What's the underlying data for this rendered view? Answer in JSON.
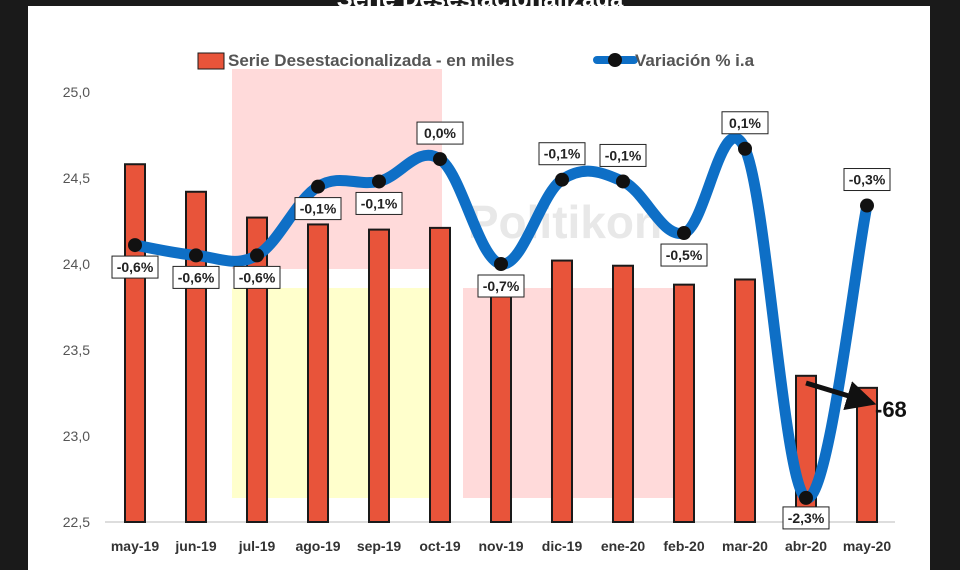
{
  "chart_data": {
    "type": "bar+line",
    "title": "Serie Desestacionalizada",
    "categories": [
      "may-19",
      "jun-19",
      "jul-19",
      "ago-19",
      "sep-19",
      "oct-19",
      "nov-19",
      "dic-19",
      "ene-20",
      "feb-20",
      "mar-20",
      "abr-20",
      "may-20"
    ],
    "series": [
      {
        "name": "Serie Desestacionalizada - en miles",
        "kind": "bar",
        "axis": "left",
        "values": [
          24.58,
          24.42,
          24.27,
          24.23,
          24.2,
          24.21,
          23.86,
          24.02,
          23.99,
          23.88,
          23.91,
          23.35,
          23.28
        ]
      },
      {
        "name": "Variación % i.a",
        "kind": "line",
        "values": [
          -0.6,
          -0.6,
          -0.6,
          -0.1,
          -0.1,
          0.0,
          -0.7,
          -0.1,
          -0.1,
          -0.5,
          0.1,
          -2.3,
          -0.3
        ],
        "labels": [
          "-0,6%",
          "-0,6%",
          "-0,6%",
          "-0,1%",
          "-0,1%",
          "0,0%",
          "-0,7%",
          "-0,1%",
          "-0,1%",
          "-0,5%",
          "0,1%",
          "-2,3%",
          "-0,3%"
        ],
        "plot_level": [
          24.11,
          24.05,
          24.05,
          24.45,
          24.48,
          24.61,
          24.0,
          24.49,
          24.48,
          24.18,
          24.67,
          22.64,
          24.34
        ]
      }
    ],
    "y_axis": {
      "min": 22.5,
      "max": 25.0,
      "ticks": [
        "22,5",
        "23,0",
        "23,5",
        "24,0",
        "24,5",
        "25,0"
      ]
    },
    "annotation": {
      "text": "-68",
      "target": "may-20"
    },
    "watermark": "Politikon",
    "colors": {
      "bar": "#E8543A",
      "bar_border": "#1a1a1a",
      "line": "#0E6FC6",
      "marker": "#111111",
      "shade_red": "#FFDADA",
      "shade_yellow": "#FFFFCC"
    }
  }
}
